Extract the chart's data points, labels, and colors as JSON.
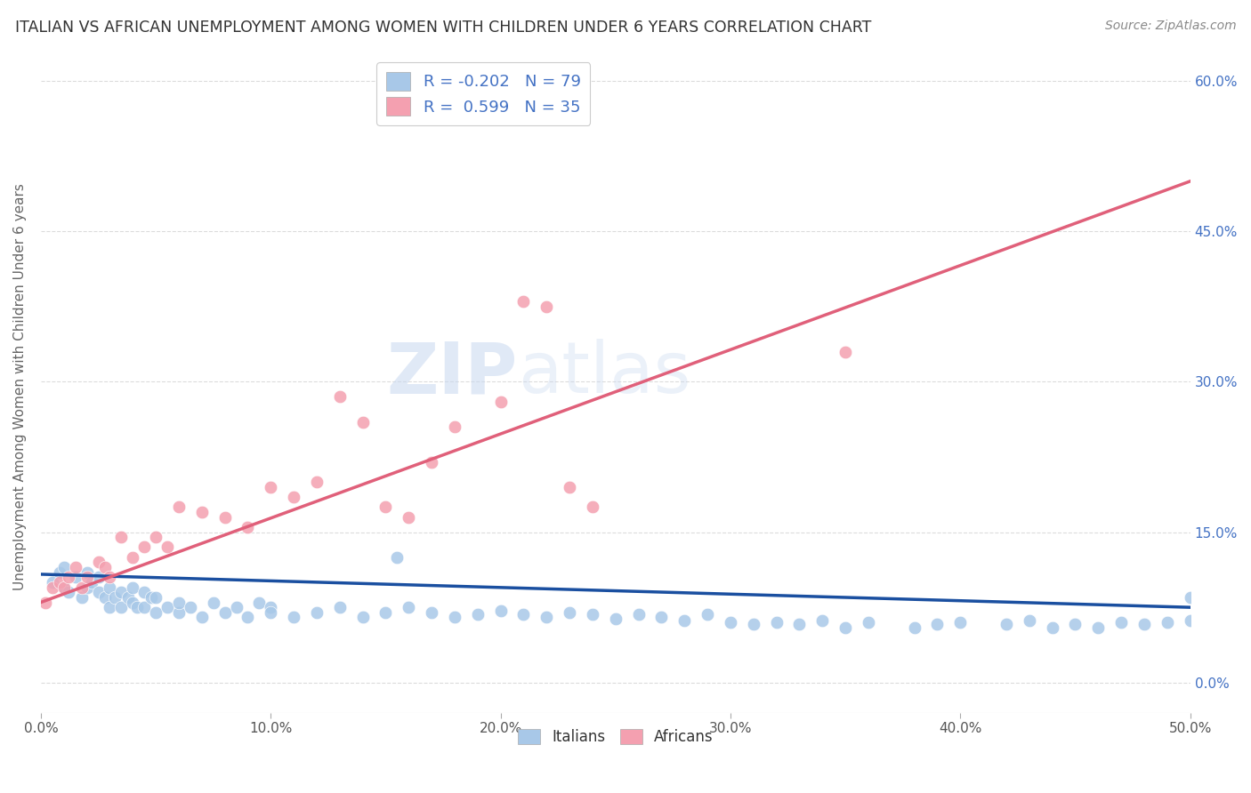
{
  "title": "ITALIAN VS AFRICAN UNEMPLOYMENT AMONG WOMEN WITH CHILDREN UNDER 6 YEARS CORRELATION CHART",
  "source": "Source: ZipAtlas.com",
  "ylabel": "Unemployment Among Women with Children Under 6 years",
  "xlim": [
    0.0,
    0.5
  ],
  "ylim": [
    -0.03,
    0.62
  ],
  "italians_R": -0.202,
  "italians_N": 79,
  "africans_R": 0.599,
  "africans_N": 35,
  "italian_color": "#a8c8e8",
  "african_color": "#f4a0b0",
  "italian_line_color": "#1a4fa0",
  "african_line_color": "#e0607a",
  "background_color": "#ffffff",
  "watermark_zip": "ZIP",
  "watermark_atlas": "atlas",
  "y_ticks": [
    0.0,
    0.15,
    0.3,
    0.45,
    0.6
  ],
  "x_ticks": [
    0.0,
    0.1,
    0.2,
    0.3,
    0.4,
    0.5
  ],
  "italian_line_x": [
    0.0,
    0.5
  ],
  "italian_line_y": [
    0.108,
    0.075
  ],
  "african_line_x": [
    0.0,
    0.5
  ],
  "african_line_y": [
    0.08,
    0.5
  ],
  "italians_x": [
    0.005,
    0.008,
    0.01,
    0.01,
    0.012,
    0.015,
    0.018,
    0.02,
    0.02,
    0.022,
    0.025,
    0.025,
    0.028,
    0.03,
    0.03,
    0.032,
    0.035,
    0.035,
    0.038,
    0.04,
    0.04,
    0.042,
    0.045,
    0.045,
    0.048,
    0.05,
    0.05,
    0.055,
    0.06,
    0.06,
    0.065,
    0.07,
    0.075,
    0.08,
    0.085,
    0.09,
    0.095,
    0.1,
    0.1,
    0.11,
    0.12,
    0.13,
    0.14,
    0.15,
    0.155,
    0.16,
    0.17,
    0.18,
    0.19,
    0.2,
    0.21,
    0.22,
    0.23,
    0.24,
    0.25,
    0.26,
    0.27,
    0.28,
    0.29,
    0.3,
    0.31,
    0.32,
    0.33,
    0.34,
    0.35,
    0.36,
    0.38,
    0.39,
    0.4,
    0.42,
    0.43,
    0.44,
    0.45,
    0.46,
    0.47,
    0.48,
    0.49,
    0.5,
    0.5
  ],
  "italians_y": [
    0.1,
    0.11,
    0.095,
    0.115,
    0.09,
    0.105,
    0.085,
    0.095,
    0.11,
    0.1,
    0.09,
    0.105,
    0.085,
    0.095,
    0.075,
    0.085,
    0.09,
    0.075,
    0.085,
    0.08,
    0.095,
    0.075,
    0.09,
    0.075,
    0.085,
    0.07,
    0.085,
    0.075,
    0.07,
    0.08,
    0.075,
    0.065,
    0.08,
    0.07,
    0.075,
    0.065,
    0.08,
    0.075,
    0.07,
    0.065,
    0.07,
    0.075,
    0.065,
    0.07,
    0.125,
    0.075,
    0.07,
    0.065,
    0.068,
    0.072,
    0.068,
    0.065,
    0.07,
    0.068,
    0.064,
    0.068,
    0.065,
    0.062,
    0.068,
    0.06,
    0.058,
    0.06,
    0.058,
    0.062,
    0.055,
    0.06,
    0.055,
    0.058,
    0.06,
    0.058,
    0.062,
    0.055,
    0.058,
    0.055,
    0.06,
    0.058,
    0.06,
    0.062,
    0.085
  ],
  "africans_x": [
    0.002,
    0.005,
    0.008,
    0.01,
    0.012,
    0.015,
    0.018,
    0.02,
    0.025,
    0.028,
    0.03,
    0.035,
    0.04,
    0.045,
    0.05,
    0.055,
    0.06,
    0.07,
    0.08,
    0.09,
    0.1,
    0.11,
    0.12,
    0.13,
    0.14,
    0.15,
    0.16,
    0.17,
    0.18,
    0.2,
    0.21,
    0.22,
    0.23,
    0.24,
    0.35
  ],
  "africans_y": [
    0.08,
    0.095,
    0.1,
    0.095,
    0.105,
    0.115,
    0.095,
    0.105,
    0.12,
    0.115,
    0.105,
    0.145,
    0.125,
    0.135,
    0.145,
    0.135,
    0.175,
    0.17,
    0.165,
    0.155,
    0.195,
    0.185,
    0.2,
    0.285,
    0.26,
    0.175,
    0.165,
    0.22,
    0.255,
    0.28,
    0.38,
    0.375,
    0.195,
    0.175,
    0.33
  ]
}
